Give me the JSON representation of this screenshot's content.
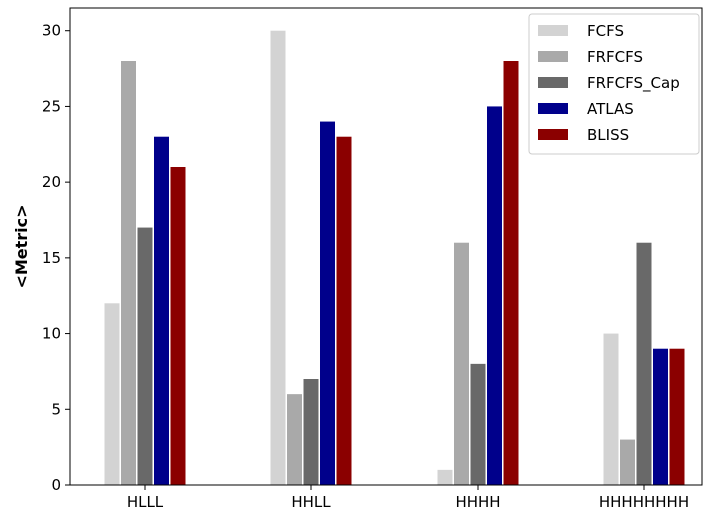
{
  "chart_data": {
    "type": "bar",
    "categories": [
      "HLLL",
      "HHLL",
      "HHHH",
      "HHHHHHHH"
    ],
    "series": [
      {
        "name": "FCFS",
        "color": "#d3d3d3",
        "values": [
          12,
          30,
          1,
          10
        ]
      },
      {
        "name": "FRFCFS",
        "color": "#a9a9a9",
        "values": [
          28,
          6,
          16,
          3
        ]
      },
      {
        "name": "FRFCFS_Cap",
        "color": "#696969",
        "values": [
          17,
          7,
          8,
          16
        ]
      },
      {
        "name": "ATLAS",
        "color": "#00008b",
        "values": [
          23,
          24,
          25,
          9
        ]
      },
      {
        "name": "BLISS",
        "color": "#8b0000",
        "values": [
          21,
          23,
          28,
          9
        ]
      }
    ],
    "title": "",
    "xlabel": "",
    "ylabel": "<Metric>",
    "ylim": [
      0,
      31.5
    ],
    "yticks": [
      0,
      5,
      10,
      15,
      20,
      25,
      30
    ],
    "grid": false,
    "legend_position": "top-right"
  }
}
